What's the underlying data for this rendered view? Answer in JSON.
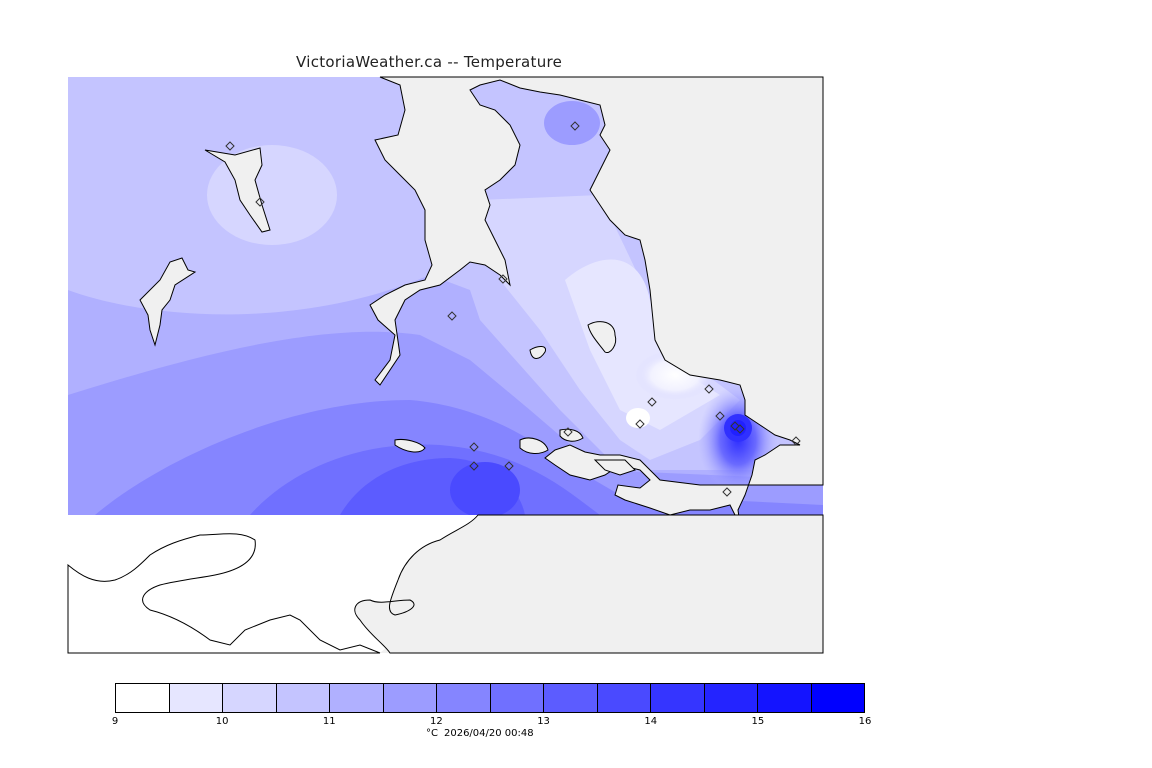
{
  "title": "VictoriaWeather.ca -- Temperature",
  "legend": {
    "unit": "°C",
    "timestamp": "2026/04/20 00:48",
    "ticks": [
      "9",
      "10",
      "11",
      "12",
      "13",
      "14",
      "15",
      "16"
    ],
    "colors": [
      "#ffffff",
      "#e6e6ff",
      "#d6d6ff",
      "#c4c4ff",
      "#b0b0ff",
      "#9c9cff",
      "#8585ff",
      "#7070ff",
      "#5c5cff",
      "#4a4aff",
      "#3535ff",
      "#2424ff",
      "#1414ff",
      "#0000ff"
    ]
  },
  "map": {
    "land_color": "#f0f0f0",
    "station_marker": "diamond-icon",
    "station_count": 17
  }
}
